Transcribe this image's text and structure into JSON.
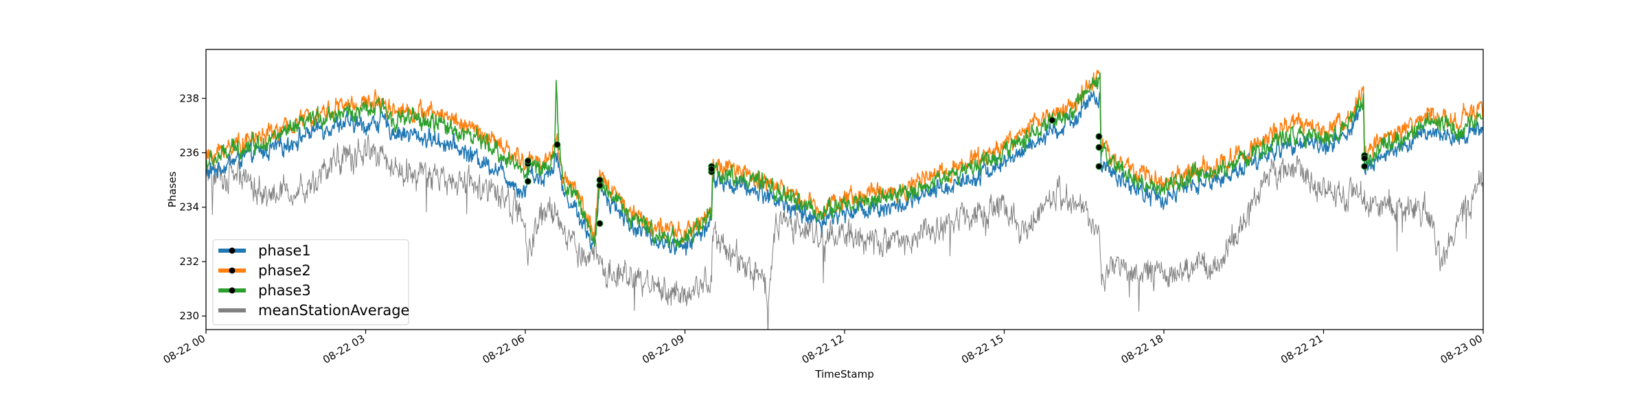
{
  "chart_data": {
    "type": "line",
    "title": "",
    "xlabel": "TimeStamp",
    "ylabel": "Phases",
    "xlim": [
      "2022-08-22 00:00",
      "2022-08-23 00:00"
    ],
    "ylim": [
      229.5,
      239.8
    ],
    "x_ticks": [
      {
        "t": 0,
        "label": "08-22 00"
      },
      {
        "t": 3,
        "label": "08-22 03"
      },
      {
        "t": 6,
        "label": "08-22 06"
      },
      {
        "t": 9,
        "label": "08-22 09"
      },
      {
        "t": 12,
        "label": "08-22 12"
      },
      {
        "t": 15,
        "label": "08-22 15"
      },
      {
        "t": 18,
        "label": "08-22 18"
      },
      {
        "t": 21,
        "label": "08-22 21"
      },
      {
        "t": 24,
        "label": "08-23 00"
      }
    ],
    "y_ticks": [
      230,
      232,
      234,
      236,
      238
    ],
    "grid": false,
    "legend": "lower-left",
    "series": [
      {
        "name": "phase1",
        "color": "#1f77b4",
        "width": 1.6,
        "noise": 0.45,
        "x": [
          0,
          0.5,
          1,
          1.5,
          2,
          2.5,
          3,
          3.3,
          3.5,
          4,
          4.5,
          5,
          5.5,
          6,
          6.05,
          6.3,
          6.5,
          6.6,
          6.7,
          7,
          7.3,
          7.4,
          7.5,
          8,
          8.5,
          9,
          9.5,
          9.52,
          10,
          10.5,
          11,
          11.5,
          12,
          12.5,
          13,
          13.5,
          14,
          14.5,
          15,
          15.5,
          16,
          16.3,
          16.5,
          16.8,
          16.82,
          17,
          17.3,
          17.5,
          18,
          18.5,
          19,
          19.5,
          20,
          20.5,
          21,
          21.5,
          21.75,
          21.77,
          22,
          22.5,
          23,
          23.5,
          24
        ],
        "y": [
          235.2,
          235.7,
          236.0,
          236.3,
          236.8,
          237.1,
          237.0,
          237.2,
          236.8,
          236.6,
          236.4,
          235.9,
          235.4,
          234.5,
          235.4,
          235.0,
          235.5,
          236.0,
          234.6,
          233.8,
          232.5,
          234.8,
          234.5,
          233.3,
          232.8,
          232.5,
          233.5,
          235.0,
          234.8,
          234.5,
          234.0,
          233.5,
          233.8,
          234.0,
          234.0,
          234.4,
          234.8,
          235.2,
          235.6,
          236.3,
          236.8,
          237.2,
          237.8,
          238.0,
          235.5,
          235.2,
          235.0,
          234.6,
          234.3,
          234.8,
          235.0,
          235.5,
          236.0,
          236.5,
          236.2,
          236.8,
          237.8,
          235.3,
          235.8,
          236.2,
          236.8,
          236.5,
          237.0
        ],
        "markers": [
          [
            6.05,
            234.95
          ],
          [
            7.4,
            233.4
          ],
          [
            9.5,
            235.5
          ],
          [
            16.78,
            235.5
          ],
          [
            21.77,
            235.5
          ]
        ]
      },
      {
        "name": "phase2",
        "color": "#ff7f0e",
        "width": 1.6,
        "noise": 0.45,
        "x": [
          0,
          0.5,
          1,
          1.5,
          2,
          2.5,
          3,
          3.3,
          3.5,
          4,
          4.5,
          5,
          5.5,
          6,
          6.05,
          6.3,
          6.5,
          6.6,
          6.7,
          7,
          7.3,
          7.4,
          7.5,
          8,
          8.5,
          9,
          9.5,
          9.52,
          10,
          10.5,
          11,
          11.5,
          12,
          12.5,
          13,
          13.5,
          14,
          14.5,
          15,
          15.5,
          16,
          16.3,
          16.5,
          16.8,
          16.82,
          17,
          17.3,
          17.5,
          18,
          18.5,
          19,
          19.5,
          20,
          20.5,
          21,
          21.5,
          21.75,
          21.77,
          22,
          22.5,
          23,
          23.5,
          24
        ],
        "y": [
          235.8,
          236.3,
          236.6,
          236.9,
          237.4,
          237.7,
          237.8,
          238.0,
          237.6,
          237.5,
          237.4,
          236.9,
          236.3,
          235.6,
          235.8,
          235.6,
          236.0,
          236.4,
          235.2,
          234.5,
          232.8,
          235.2,
          235.0,
          233.8,
          233.2,
          233.0,
          233.9,
          235.5,
          235.3,
          235.0,
          234.5,
          234.0,
          234.3,
          234.5,
          234.6,
          235.0,
          235.4,
          235.8,
          236.3,
          237.0,
          237.5,
          237.8,
          238.3,
          239.0,
          236.4,
          235.8,
          235.5,
          235.2,
          234.9,
          235.3,
          235.5,
          236.0,
          236.6,
          237.1,
          236.8,
          237.4,
          238.3,
          235.9,
          236.3,
          236.8,
          237.4,
          237.2,
          237.6
        ],
        "markers": [
          [
            6.05,
            235.6
          ],
          [
            7.4,
            234.8
          ],
          [
            9.5,
            235.3
          ],
          [
            16.78,
            236.6
          ],
          [
            21.77,
            235.9
          ]
        ]
      },
      {
        "name": "phase3",
        "color": "#2ca02c",
        "width": 1.6,
        "noise": 0.45,
        "x": [
          0,
          0.5,
          1,
          1.5,
          2,
          2.5,
          3,
          3.3,
          3.5,
          4,
          4.5,
          5,
          5.5,
          6,
          6.05,
          6.3,
          6.5,
          6.55,
          6.58,
          6.62,
          6.7,
          7,
          7.3,
          7.4,
          7.5,
          8,
          8.5,
          9,
          9.5,
          9.52,
          10,
          10.5,
          11,
          11.5,
          12,
          12.5,
          13,
          13.5,
          14,
          14.5,
          15,
          15.5,
          16,
          16.3,
          16.5,
          16.8,
          16.82,
          17,
          17.3,
          17.5,
          18,
          18.5,
          19,
          19.5,
          20,
          20.5,
          21,
          21.5,
          21.75,
          21.77,
          22,
          22.5,
          23,
          23.5,
          24
        ],
        "y": [
          235.6,
          236.1,
          236.4,
          236.7,
          237.2,
          237.5,
          237.5,
          237.7,
          237.3,
          237.2,
          237.0,
          236.6,
          236.0,
          235.3,
          235.6,
          235.4,
          235.8,
          236.0,
          238.5,
          236.4,
          235.0,
          234.3,
          232.6,
          235.0,
          234.8,
          233.6,
          233.0,
          232.8,
          233.7,
          235.3,
          235.1,
          234.8,
          234.3,
          233.8,
          234.1,
          234.3,
          234.4,
          234.8,
          235.2,
          235.6,
          236.0,
          236.7,
          237.2,
          237.5,
          238.0,
          238.7,
          236.0,
          235.6,
          235.3,
          234.9,
          234.6,
          235.1,
          235.3,
          235.8,
          236.3,
          236.8,
          236.5,
          237.1,
          238.0,
          235.6,
          236.1,
          236.5,
          237.1,
          236.9,
          237.3
        ],
        "markers": [
          [
            6.05,
            235.7
          ],
          [
            6.6,
            236.3
          ],
          [
            7.4,
            235.0
          ],
          [
            9.5,
            235.4
          ],
          [
            15.9,
            237.2
          ],
          [
            16.78,
            236.2
          ],
          [
            21.77,
            235.8
          ]
        ]
      },
      {
        "name": "meanStationAverage",
        "color": "#808080",
        "width": 1.0,
        "noise": 0.7,
        "x": [
          0,
          0.5,
          1,
          1.3,
          2,
          2.3,
          2.5,
          3,
          3.3,
          3.5,
          4,
          4.5,
          5,
          5.5,
          6,
          6.05,
          6.3,
          6.5,
          6.7,
          7,
          7.3,
          7.5,
          8,
          8.5,
          9,
          9.5,
          9.52,
          10,
          10.5,
          10.55,
          10.7,
          11,
          11.5,
          12,
          12.5,
          13,
          13.5,
          14,
          14.5,
          15,
          15.3,
          15.5,
          16,
          16.5,
          16.8,
          16.82,
          17,
          17.5,
          18,
          18.5,
          19,
          19.5,
          20,
          20.5,
          21,
          21.5,
          21.75,
          22,
          22.5,
          23,
          23.2,
          23.5,
          24
        ],
        "y": [
          235.0,
          235.3,
          234.5,
          234.5,
          234.8,
          235.5,
          235.8,
          236.0,
          236.0,
          235.5,
          235.2,
          235.0,
          234.8,
          234.4,
          233.5,
          232.0,
          234.0,
          233.8,
          233.2,
          232.5,
          232.3,
          231.8,
          231.3,
          231.0,
          230.7,
          231.5,
          233.0,
          232.0,
          231.5,
          230.0,
          233.5,
          233.3,
          233.0,
          233.0,
          232.8,
          232.8,
          233.0,
          233.5,
          233.8,
          234.0,
          233.0,
          233.5,
          234.5,
          234.0,
          233.0,
          231.5,
          231.8,
          231.5,
          231.5,
          231.8,
          232.0,
          233.5,
          235.2,
          235.5,
          234.5,
          234.5,
          234.3,
          234.0,
          234.0,
          233.8,
          232.0,
          233.5,
          235.0
        ]
      }
    ]
  }
}
